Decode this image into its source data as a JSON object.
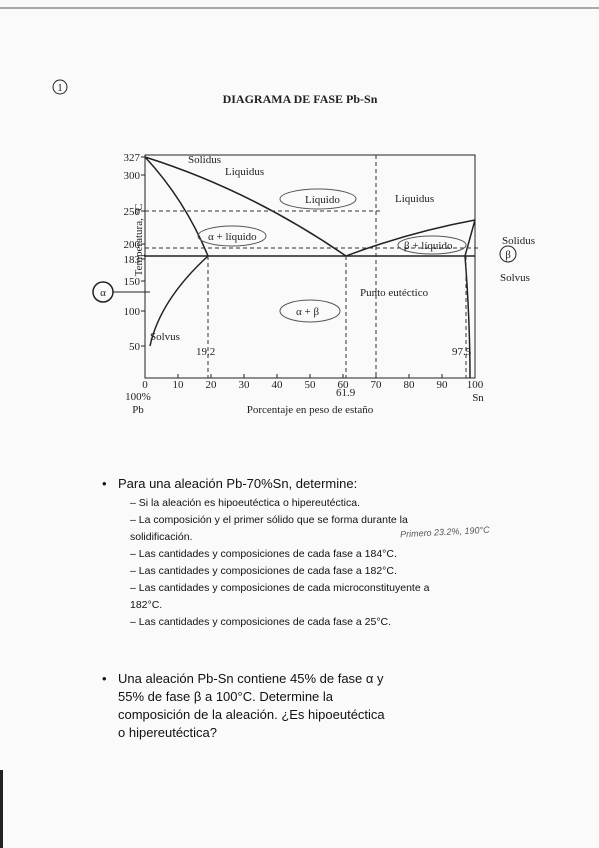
{
  "page_number": "1",
  "diagram": {
    "title": "DIAGRAMA DE FASE Pb-Sn",
    "y_axis_label": "Temperatura, °C",
    "x_axis_label": "Porcentaje en peso de estaño",
    "y_ticks": [
      "327",
      "300",
      "250",
      "200",
      "183",
      "150",
      "100",
      "50"
    ],
    "x_ticks": [
      "0",
      "10",
      "20",
      "30",
      "40",
      "50",
      "60",
      "70",
      "80",
      "90",
      "100"
    ],
    "x_left_end": [
      "100%",
      "Pb"
    ],
    "x_right_end": "Sn",
    "labels": {
      "solidus_left": "Solidus",
      "liquidus_left": "Liquidus",
      "liquid": "Líquido",
      "liquidus_right": "Liquidus",
      "alpha_liquid": "α + líquido",
      "beta_liquid": "β + líquido",
      "solidus_right": "Solidus",
      "beta": "β",
      "solvus_right": "Solvus",
      "alpha": "α",
      "eutectic": "Punto eutéctico",
      "alpha_beta": "α + β",
      "solvus_left": "Solvus",
      "comp_alpha": "19.2",
      "comp_eutectic": "61.9",
      "comp_beta": "97.5"
    }
  },
  "questions": [
    {
      "text": "Para una aleación Pb-70%Sn, determine:",
      "items": [
        "Si la aleación es hipoeutéctica o hipereutéctica.",
        "La composición y el primer sólido que se forma durante la solidificación.",
        "Las cantidades y composiciones de cada fase a 184°C.",
        "Las cantidades y composiciones de cada fase a 182°C.",
        "Las cantidades y composiciones de cada microconstituyente a 182°C.",
        "Las cantidades y composiciones de cada fase a 25°C."
      ]
    },
    {
      "text": "Una aleación Pb-Sn contiene 45% de fase α y 55% de fase β a 100°C. Determine la composición de la aleación. ¿Es hipoeutéctica o hipereutéctica?",
      "items": []
    }
  ],
  "handwritten_note": "Primero 23.2%, 190°C"
}
